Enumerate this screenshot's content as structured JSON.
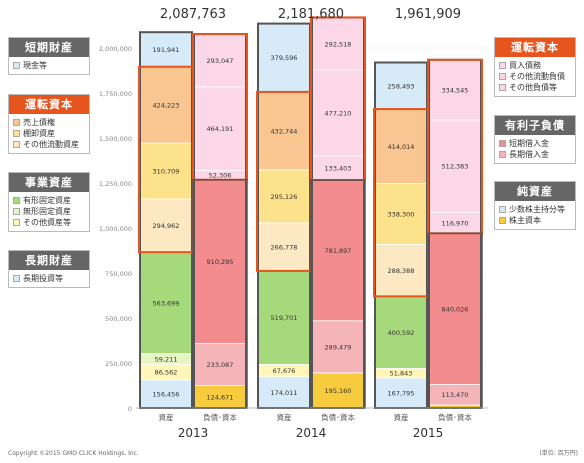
{
  "chart_data": {
    "type": "stacked-bar",
    "y_ticks": [
      "2,000,000",
      "1,750,000",
      "1,500,000",
      "1,250,000",
      "1,000,000",
      "750,000",
      "500,000",
      "250,000",
      "0"
    ],
    "ylim": [
      0,
      2000000
    ],
    "grid": true,
    "years": [
      {
        "year": "2013",
        "total": "2,087,763",
        "assets_label": "資産",
        "liab_label": "負債･資本",
        "assets": [
          {
            "key": "cash",
            "value": 156456,
            "label": "156,456"
          },
          {
            "key": "fixed_other",
            "value": 86562,
            "label": "86,562"
          },
          {
            "key": "fixed_intangible",
            "value": 59211,
            "label": "59,211"
          },
          {
            "key": "fixed_tangible",
            "value": 563699,
            "label": "563,699"
          },
          {
            "key": "ca_other",
            "value": 294962,
            "label": "294,962"
          },
          {
            "key": "inventory",
            "value": 310709,
            "label": "310,709"
          },
          {
            "key": "receivable",
            "value": 424223,
            "label": "424,223"
          },
          {
            "key": "longterm_inv",
            "value": 191941,
            "label": "191,941"
          }
        ],
        "liabilities": [
          {
            "key": "equity",
            "value": 124671,
            "label": "124,671"
          },
          {
            "key": "minority",
            "value": 233087,
            "label": "233,087"
          },
          {
            "key": "lt_debt",
            "value": 910295,
            "label": "910,295"
          },
          {
            "key": "st_debt",
            "value": 52306,
            "label": "52,306"
          },
          {
            "key": "other_liab",
            "value": 464191,
            "label": "464,191"
          },
          {
            "key": "payable",
            "value": 293047,
            "label": "293,047"
          }
        ]
      },
      {
        "year": "2014",
        "total": "2,181,680",
        "assets_label": "資産",
        "liab_label": "負債･資本",
        "assets": [
          {
            "key": "cash",
            "value": 174011,
            "label": "174,011"
          },
          {
            "key": "fixed_other",
            "value": 67676,
            "label": "67,676"
          },
          {
            "key": "fixed_tangible",
            "value": 519701,
            "label": "519,701"
          },
          {
            "key": "ca_other",
            "value": 266778,
            "label": "266,778"
          },
          {
            "key": "inventory",
            "value": 295126,
            "label": "295,126"
          },
          {
            "key": "receivable",
            "value": 432744,
            "label": "432,744"
          },
          {
            "key": "longterm_inv",
            "value": 379596,
            "label": "379,596"
          }
        ],
        "liabilities": [
          {
            "key": "equity",
            "value": 195160,
            "label": "195,160"
          },
          {
            "key": "minority",
            "value": 289479,
            "label": "289,479"
          },
          {
            "key": "lt_debt",
            "value": 781897,
            "label": "781,897"
          },
          {
            "key": "st_debt",
            "value": 133403,
            "label": "133,403"
          },
          {
            "key": "other_liab",
            "value": 477210,
            "label": "477,210"
          },
          {
            "key": "payable",
            "value": 292518,
            "label": "292,518"
          }
        ]
      },
      {
        "year": "2015",
        "total": "1,961,909",
        "assets_label": "資産",
        "liab_label": "負債･資本",
        "assets": [
          {
            "key": "cash",
            "value": 167795,
            "label": "167,795"
          },
          {
            "key": "fixed_other",
            "value": 51843,
            "label": "51,843"
          },
          {
            "key": "fixed_tangible",
            "value": 400592,
            "label": "400,592"
          },
          {
            "key": "ca_other",
            "value": 288388,
            "label": "288,388"
          },
          {
            "key": "inventory",
            "value": 338300,
            "label": "338,300"
          },
          {
            "key": "receivable",
            "value": 414014,
            "label": "414,014"
          },
          {
            "key": "longterm_inv",
            "value": 258493,
            "label": "258,493"
          }
        ],
        "liabilities": [
          {
            "key": "equity",
            "value": 17000,
            "label": ""
          },
          {
            "key": "minority",
            "value": 113470,
            "label": "113,470"
          },
          {
            "key": "lt_debt",
            "value": 840026,
            "label": "840,026"
          },
          {
            "key": "st_debt",
            "value": 116970,
            "label": "116,970"
          },
          {
            "key": "other_liab",
            "value": 512383,
            "label": "512,383"
          },
          {
            "key": "payable",
            "value": 334545,
            "label": "334,545"
          }
        ]
      }
    ],
    "colors": {
      "cash": "#d6eaf7",
      "fixed_other": "#fff6b8",
      "fixed_intangible": "#e6f5c4",
      "fixed_tangible": "#a6d97b",
      "ca_other": "#fde8c4",
      "inventory": "#fde28c",
      "receivable": "#f9c590",
      "longterm_inv": "#d6eaf7",
      "equity": "#f6cb3e",
      "minority": "#f5b5b8",
      "lt_debt": "#f38c8f",
      "st_debt": "#fbd7e7",
      "other_liab": "#fbd7e7",
      "payable": "#fbd7e7"
    }
  },
  "legends_left": [
    {
      "title": "短期財産",
      "head_color": "#666666",
      "rows": [
        {
          "label": "現金等",
          "color": "#d6eaf7"
        }
      ]
    },
    {
      "title": "運転資本",
      "head_color": "#e7551f",
      "rows": [
        {
          "label": "売上債権",
          "color": "#f9c590"
        },
        {
          "label": "棚卸資産",
          "color": "#fde28c"
        },
        {
          "label": "その他流動資産",
          "color": "#fde8c4"
        }
      ]
    },
    {
      "title": "事業資産",
      "head_color": "#666666",
      "rows": [
        {
          "label": "有形固定資産",
          "color": "#a6d97b"
        },
        {
          "label": "無形固定資産",
          "color": "#e6f5c4"
        },
        {
          "label": "その他資産等",
          "color": "#fff6b8"
        }
      ]
    },
    {
      "title": "長期財産",
      "head_color": "#666666",
      "rows": [
        {
          "label": "長期投資等",
          "color": "#d6eaf7"
        }
      ]
    }
  ],
  "legends_right": [
    {
      "title": "運転資本",
      "head_color": "#e7551f",
      "rows": [
        {
          "label": "買入債務",
          "color": "#fbd7e7"
        },
        {
          "label": "その他流動負債",
          "color": "#fbd7e7"
        },
        {
          "label": "その他負債等",
          "color": "#fbd7e7"
        }
      ]
    },
    {
      "title": "有利子負債",
      "head_color": "#666666",
      "rows": [
        {
          "label": "短期借入金",
          "color": "#f38c8f"
        },
        {
          "label": "長期借入金",
          "color": "#f5b5b8"
        }
      ]
    },
    {
      "title": "純資産",
      "head_color": "#666666",
      "rows": [
        {
          "label": "少数株主持分等",
          "color": "#d6eaf7"
        },
        {
          "label": "株主資本",
          "color": "#f6cb3e"
        }
      ]
    }
  ],
  "footer": {
    "copyright": "Copyright  ©2015 GMO CLICK Holdings, Inc.",
    "unit": "(単位: 百万円)"
  }
}
